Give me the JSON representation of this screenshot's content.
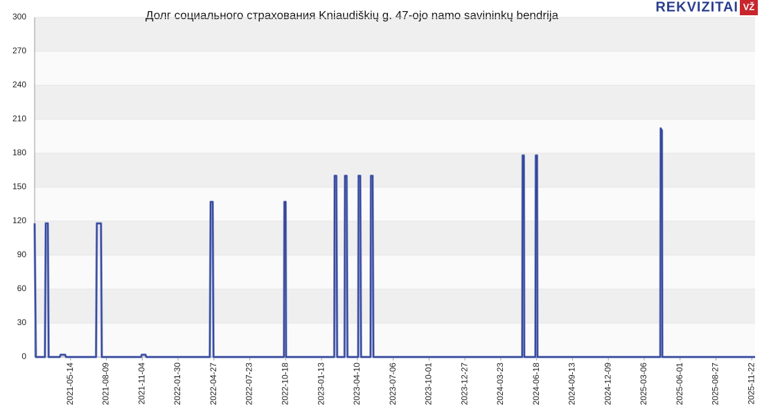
{
  "chart_data": {
    "type": "line",
    "title": "Долг социального страхования Kniaudiškių g. 47-ojo namo savininkų bendrija",
    "logo": "REKVIZITAI",
    "logo_badge": "VŽ",
    "x": [
      "2021-02-16",
      "2021-02-19",
      "2021-03-13",
      "2021-03-15",
      "2021-03-20",
      "2021-03-22",
      "2021-04-18",
      "2021-04-20",
      "2021-05-01",
      "2021-05-03",
      "2021-07-15",
      "2021-07-17",
      "2021-07-27",
      "2021-07-29",
      "2021-11-01",
      "2021-11-03",
      "2021-11-12",
      "2021-11-14",
      "2022-04-17",
      "2022-04-19",
      "2022-04-24",
      "2022-04-26",
      "2022-10-14",
      "2022-10-15",
      "2022-10-18",
      "2022-10-19",
      "2023-02-13",
      "2023-02-14",
      "2023-02-18",
      "2023-02-20",
      "2023-03-10",
      "2023-03-11",
      "2023-03-15",
      "2023-03-17",
      "2023-04-12",
      "2023-04-13",
      "2023-04-17",
      "2023-04-19",
      "2023-05-12",
      "2023-05-13",
      "2023-05-17",
      "2023-05-19",
      "2024-05-14",
      "2024-05-15",
      "2024-05-18",
      "2024-05-19",
      "2024-06-15",
      "2024-06-16",
      "2024-06-19",
      "2024-06-20",
      "2025-04-14",
      "2025-04-15",
      "2025-04-18",
      "2025-04-19",
      "2025-11-30"
    ],
    "values": [
      118,
      0,
      0,
      118,
      118,
      0,
      0,
      2,
      2,
      0,
      0,
      118,
      118,
      0,
      0,
      2,
      2,
      0,
      0,
      137,
      137,
      0,
      0,
      137,
      137,
      0,
      0,
      160,
      160,
      0,
      0,
      160,
      160,
      0,
      0,
      160,
      160,
      0,
      0,
      160,
      160,
      0,
      0,
      178,
      178,
      0,
      0,
      178,
      178,
      0,
      0,
      202,
      200,
      0,
      0
    ],
    "color": "#34479a",
    "xlim": [
      "2021-02-16",
      "2025-11-30"
    ],
    "xticks": [
      "2021-05-14",
      "2021-08-09",
      "2021-11-04",
      "2022-01-30",
      "2022-04-27",
      "2022-07-23",
      "2022-10-18",
      "2023-01-13",
      "2023-04-10",
      "2023-07-06",
      "2023-10-01",
      "2023-12-27",
      "2024-03-23",
      "2024-06-18",
      "2024-09-13",
      "2024-12-09",
      "2025-03-06",
      "2025-06-01",
      "2025-08-27",
      "2025-11-22"
    ],
    "ylim": [
      0,
      300
    ],
    "yticks": [
      0,
      30,
      60,
      90,
      120,
      150,
      180,
      210,
      240,
      270,
      300
    ],
    "grid": true
  }
}
